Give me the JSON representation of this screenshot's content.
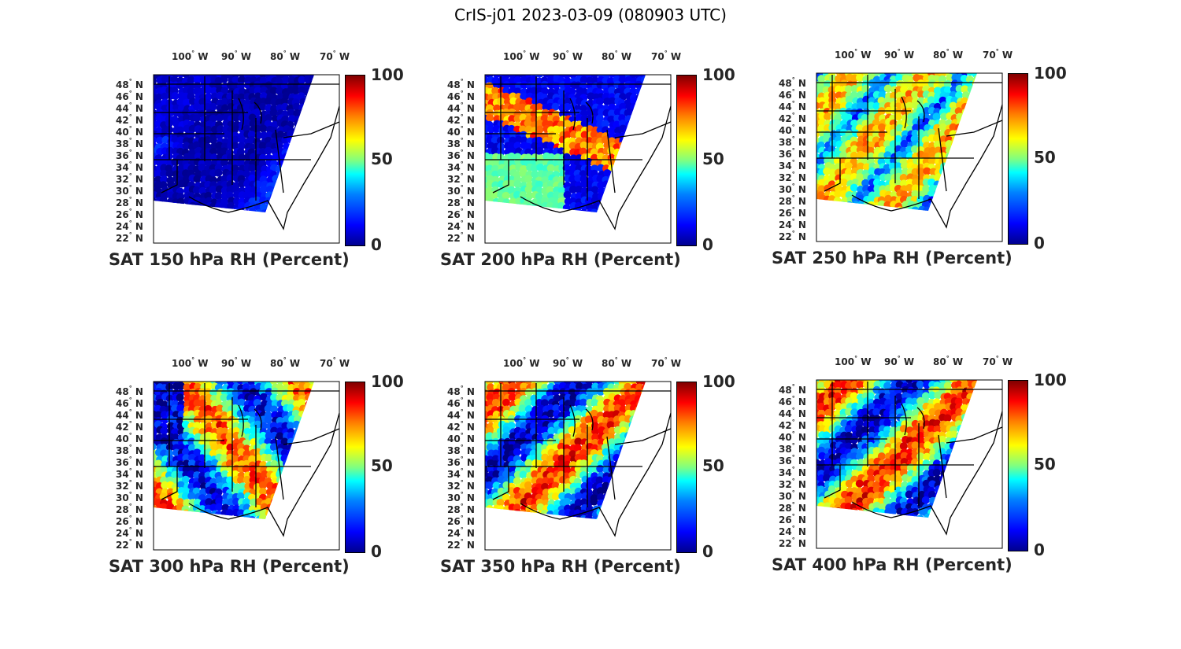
{
  "figure": {
    "title": "CrIS-j01 2023-03-09 (080903 UTC)"
  },
  "axes": {
    "lon_labels": [
      {
        "deg": "100",
        "hemi": "W"
      },
      {
        "deg": "90",
        "hemi": "W"
      },
      {
        "deg": "80",
        "hemi": "W"
      },
      {
        "deg": "70",
        "hemi": "W"
      }
    ],
    "lat_labels": [
      {
        "deg": "48",
        "hemi": "N"
      },
      {
        "deg": "46",
        "hemi": "N"
      },
      {
        "deg": "44",
        "hemi": "N"
      },
      {
        "deg": "42",
        "hemi": "N"
      },
      {
        "deg": "40",
        "hemi": "N"
      },
      {
        "deg": "38",
        "hemi": "N"
      },
      {
        "deg": "36",
        "hemi": "N"
      },
      {
        "deg": "34",
        "hemi": "N"
      },
      {
        "deg": "32",
        "hemi": "N"
      },
      {
        "deg": "30",
        "hemi": "N"
      },
      {
        "deg": "28",
        "hemi": "N"
      },
      {
        "deg": "26",
        "hemi": "N"
      },
      {
        "deg": "24",
        "hemi": "N"
      },
      {
        "deg": "22",
        "hemi": "N"
      }
    ],
    "colorbar_ticks": [
      "100",
      "50",
      "0"
    ]
  },
  "colormap": "jet",
  "colorbar_range": [
    0,
    100
  ],
  "panels": [
    {
      "title": "SAT 150 hPa RH (Percent)",
      "level_hpa": 150,
      "rh_scheme": "dry"
    },
    {
      "title": "SAT 200 hPa RH (Percent)",
      "level_hpa": 200,
      "rh_scheme": "band"
    },
    {
      "title": "SAT 250 hPa RH (Percent)",
      "level_hpa": 250,
      "rh_scheme": "mixed"
    },
    {
      "title": "SAT 300 hPa RH (Percent)",
      "level_hpa": 300,
      "rh_scheme": "moist-west-dry"
    },
    {
      "title": "SAT 350 hPa RH (Percent)",
      "level_hpa": 350,
      "rh_scheme": "moist"
    },
    {
      "title": "SAT 400 hPa RH (Percent)",
      "level_hpa": 400,
      "rh_scheme": "moist"
    }
  ]
}
